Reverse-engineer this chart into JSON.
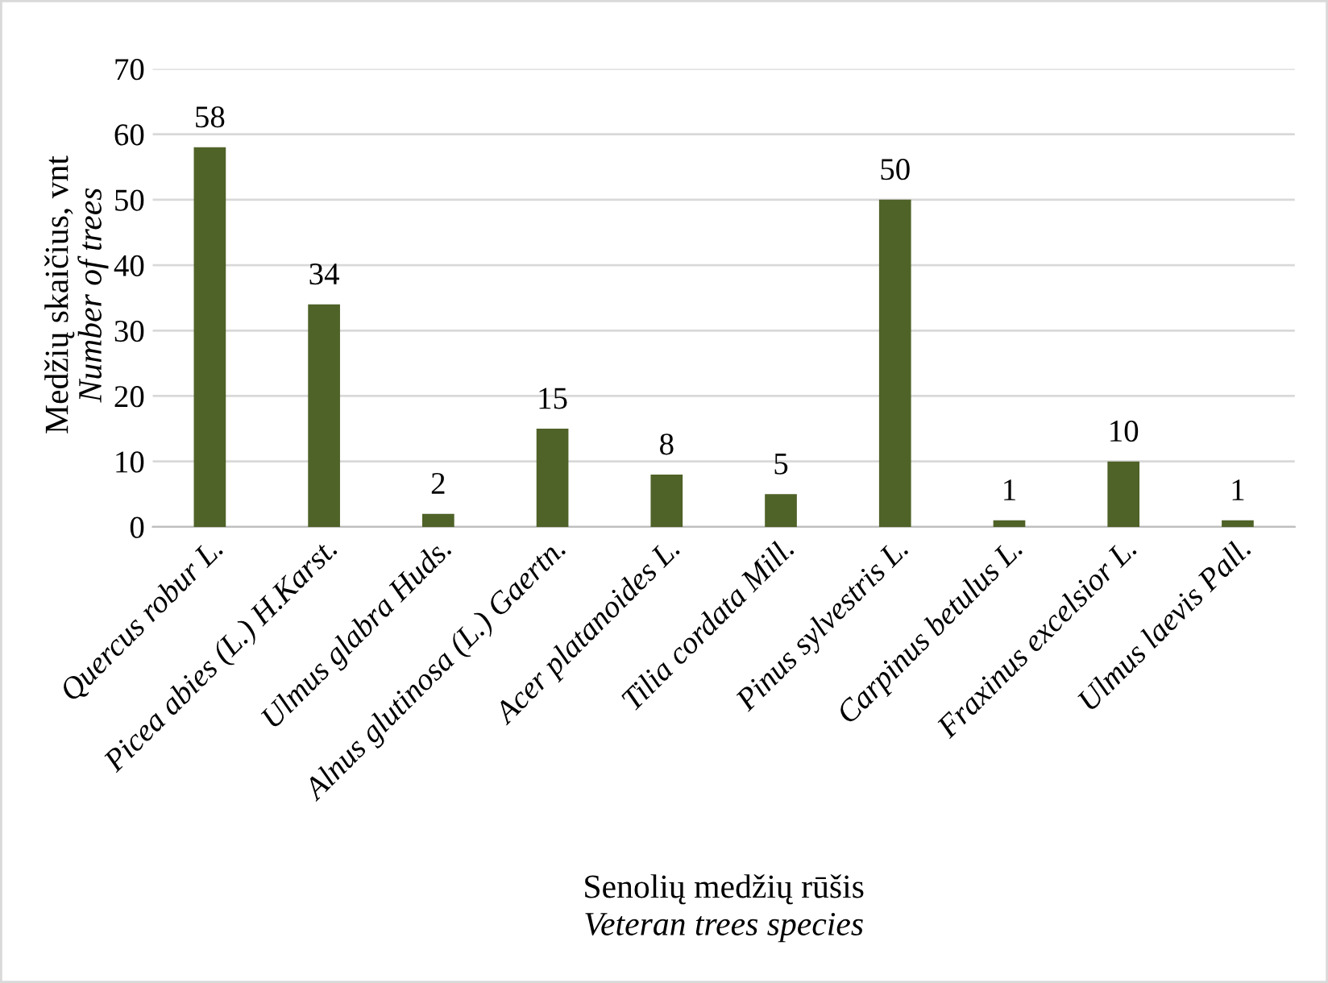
{
  "chart_data": {
    "type": "bar",
    "xlabel": "Senolių medžių rūšis\nVeteran trees species",
    "ylabel": "Medžių skaičius, vnt\nNumber of trees",
    "categories": [
      "Quercus robur L.",
      "Picea abies (L.) H.Karst.",
      "Ulmus glabra Huds.",
      "Alnus glutinosa (L.) Gaertn.",
      "Acer platanoides L.",
      "Tilia cordata Mill.",
      "Pinus sylvestris L.",
      "Carpinus betulus L.",
      "Fraxinus excelsior L.",
      "Ulmus laevis Pall."
    ],
    "values": [
      58,
      34,
      2,
      15,
      8,
      5,
      50,
      1,
      10,
      1
    ],
    "color": "#4f6228",
    "ylim": [
      0,
      70
    ],
    "yticks": [
      0,
      10,
      20,
      30,
      40,
      50,
      60,
      70
    ],
    "grid": "y",
    "data_labels": true
  }
}
